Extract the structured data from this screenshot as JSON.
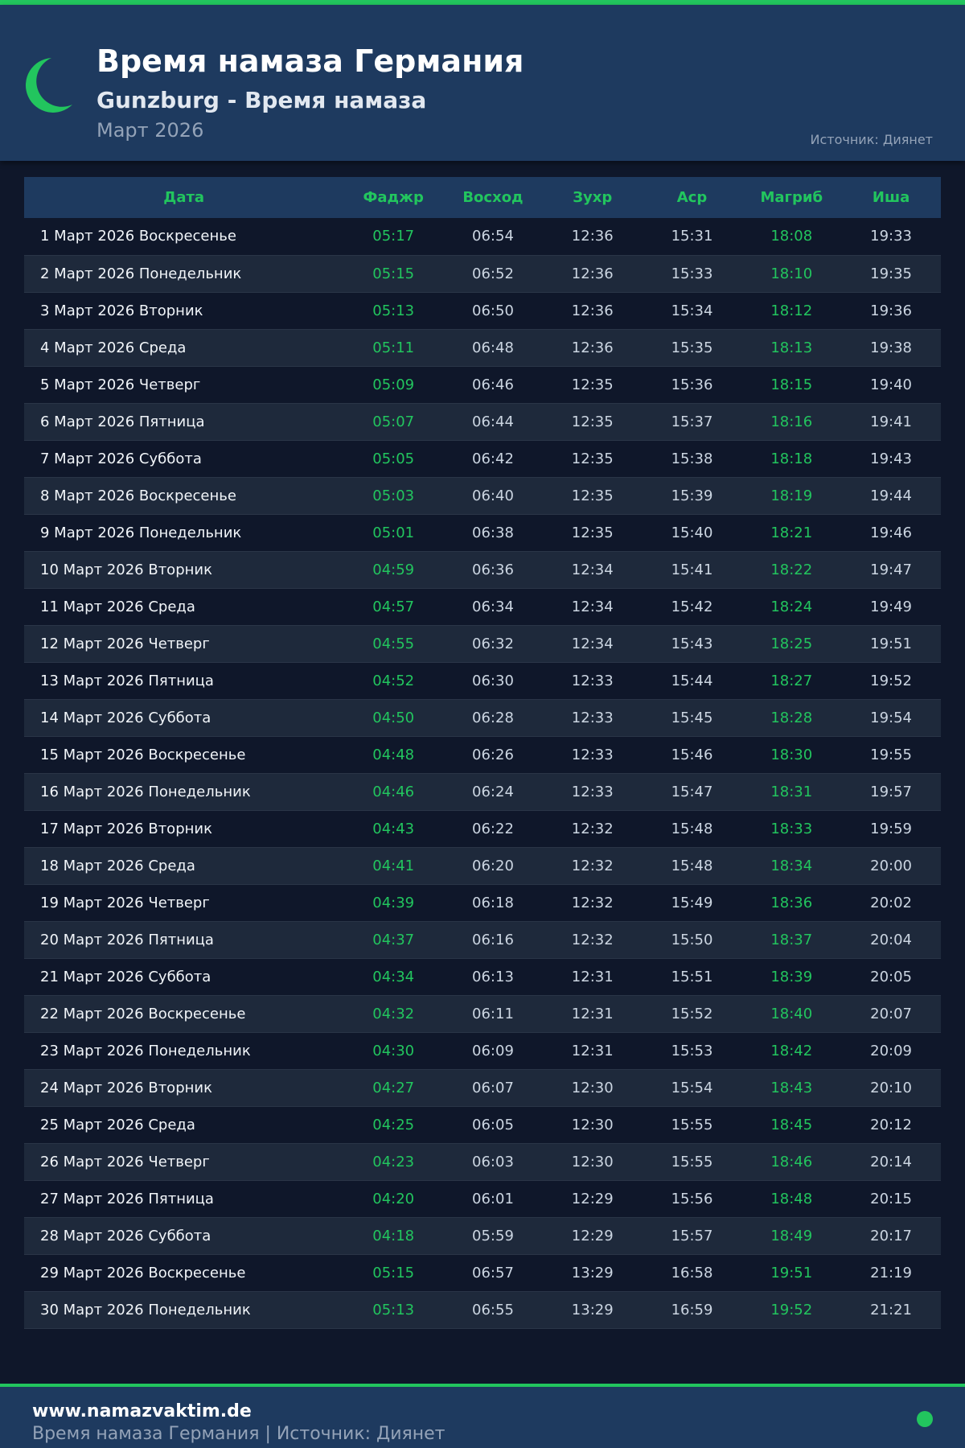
{
  "header": {
    "title": "Время намаза Германия",
    "subtitle": "Gunzburg - Время намаза",
    "month": "Март 2026",
    "source": "Источник: Диянет"
  },
  "colors": {
    "accent": "#22c55e",
    "header_bg": "#1e3a5f",
    "page_bg": "#0f172a"
  },
  "table": {
    "columns": [
      "Дата",
      "Фаджр",
      "Восход",
      "Зухр",
      "Аср",
      "Магриб",
      "Иша"
    ],
    "rows": [
      [
        "1 Март 2026 Воскресенье",
        "05:17",
        "06:54",
        "12:36",
        "15:31",
        "18:08",
        "19:33"
      ],
      [
        "2 Март 2026 Понедельник",
        "05:15",
        "06:52",
        "12:36",
        "15:33",
        "18:10",
        "19:35"
      ],
      [
        "3 Март 2026 Вторник",
        "05:13",
        "06:50",
        "12:36",
        "15:34",
        "18:12",
        "19:36"
      ],
      [
        "4 Март 2026 Среда",
        "05:11",
        "06:48",
        "12:36",
        "15:35",
        "18:13",
        "19:38"
      ],
      [
        "5 Март 2026 Четверг",
        "05:09",
        "06:46",
        "12:35",
        "15:36",
        "18:15",
        "19:40"
      ],
      [
        "6 Март 2026 Пятница",
        "05:07",
        "06:44",
        "12:35",
        "15:37",
        "18:16",
        "19:41"
      ],
      [
        "7 Март 2026 Суббота",
        "05:05",
        "06:42",
        "12:35",
        "15:38",
        "18:18",
        "19:43"
      ],
      [
        "8 Март 2026 Воскресенье",
        "05:03",
        "06:40",
        "12:35",
        "15:39",
        "18:19",
        "19:44"
      ],
      [
        "9 Март 2026 Понедельник",
        "05:01",
        "06:38",
        "12:35",
        "15:40",
        "18:21",
        "19:46"
      ],
      [
        "10 Март 2026 Вторник",
        "04:59",
        "06:36",
        "12:34",
        "15:41",
        "18:22",
        "19:47"
      ],
      [
        "11 Март 2026 Среда",
        "04:57",
        "06:34",
        "12:34",
        "15:42",
        "18:24",
        "19:49"
      ],
      [
        "12 Март 2026 Четверг",
        "04:55",
        "06:32",
        "12:34",
        "15:43",
        "18:25",
        "19:51"
      ],
      [
        "13 Март 2026 Пятница",
        "04:52",
        "06:30",
        "12:33",
        "15:44",
        "18:27",
        "19:52"
      ],
      [
        "14 Март 2026 Суббота",
        "04:50",
        "06:28",
        "12:33",
        "15:45",
        "18:28",
        "19:54"
      ],
      [
        "15 Март 2026 Воскресенье",
        "04:48",
        "06:26",
        "12:33",
        "15:46",
        "18:30",
        "19:55"
      ],
      [
        "16 Март 2026 Понедельник",
        "04:46",
        "06:24",
        "12:33",
        "15:47",
        "18:31",
        "19:57"
      ],
      [
        "17 Март 2026 Вторник",
        "04:43",
        "06:22",
        "12:32",
        "15:48",
        "18:33",
        "19:59"
      ],
      [
        "18 Март 2026 Среда",
        "04:41",
        "06:20",
        "12:32",
        "15:48",
        "18:34",
        "20:00"
      ],
      [
        "19 Март 2026 Четверг",
        "04:39",
        "06:18",
        "12:32",
        "15:49",
        "18:36",
        "20:02"
      ],
      [
        "20 Март 2026 Пятница",
        "04:37",
        "06:16",
        "12:32",
        "15:50",
        "18:37",
        "20:04"
      ],
      [
        "21 Март 2026 Суббота",
        "04:34",
        "06:13",
        "12:31",
        "15:51",
        "18:39",
        "20:05"
      ],
      [
        "22 Март 2026 Воскресенье",
        "04:32",
        "06:11",
        "12:31",
        "15:52",
        "18:40",
        "20:07"
      ],
      [
        "23 Март 2026 Понедельник",
        "04:30",
        "06:09",
        "12:31",
        "15:53",
        "18:42",
        "20:09"
      ],
      [
        "24 Март 2026 Вторник",
        "04:27",
        "06:07",
        "12:30",
        "15:54",
        "18:43",
        "20:10"
      ],
      [
        "25 Март 2026 Среда",
        "04:25",
        "06:05",
        "12:30",
        "15:55",
        "18:45",
        "20:12"
      ],
      [
        "26 Март 2026 Четверг",
        "04:23",
        "06:03",
        "12:30",
        "15:55",
        "18:46",
        "20:14"
      ],
      [
        "27 Март 2026 Пятница",
        "04:20",
        "06:01",
        "12:29",
        "15:56",
        "18:48",
        "20:15"
      ],
      [
        "28 Март 2026 Суббота",
        "04:18",
        "05:59",
        "12:29",
        "15:57",
        "18:49",
        "20:17"
      ],
      [
        "29 Март 2026 Воскресенье",
        "05:15",
        "06:57",
        "13:29",
        "16:58",
        "19:51",
        "21:19"
      ],
      [
        "30 Март 2026 Понедельник",
        "05:13",
        "06:55",
        "13:29",
        "16:59",
        "19:52",
        "21:21"
      ]
    ]
  },
  "footer": {
    "site": "www.namazvaktim.de",
    "tagline": "Время намаза Германия | Источник: Диянет"
  }
}
